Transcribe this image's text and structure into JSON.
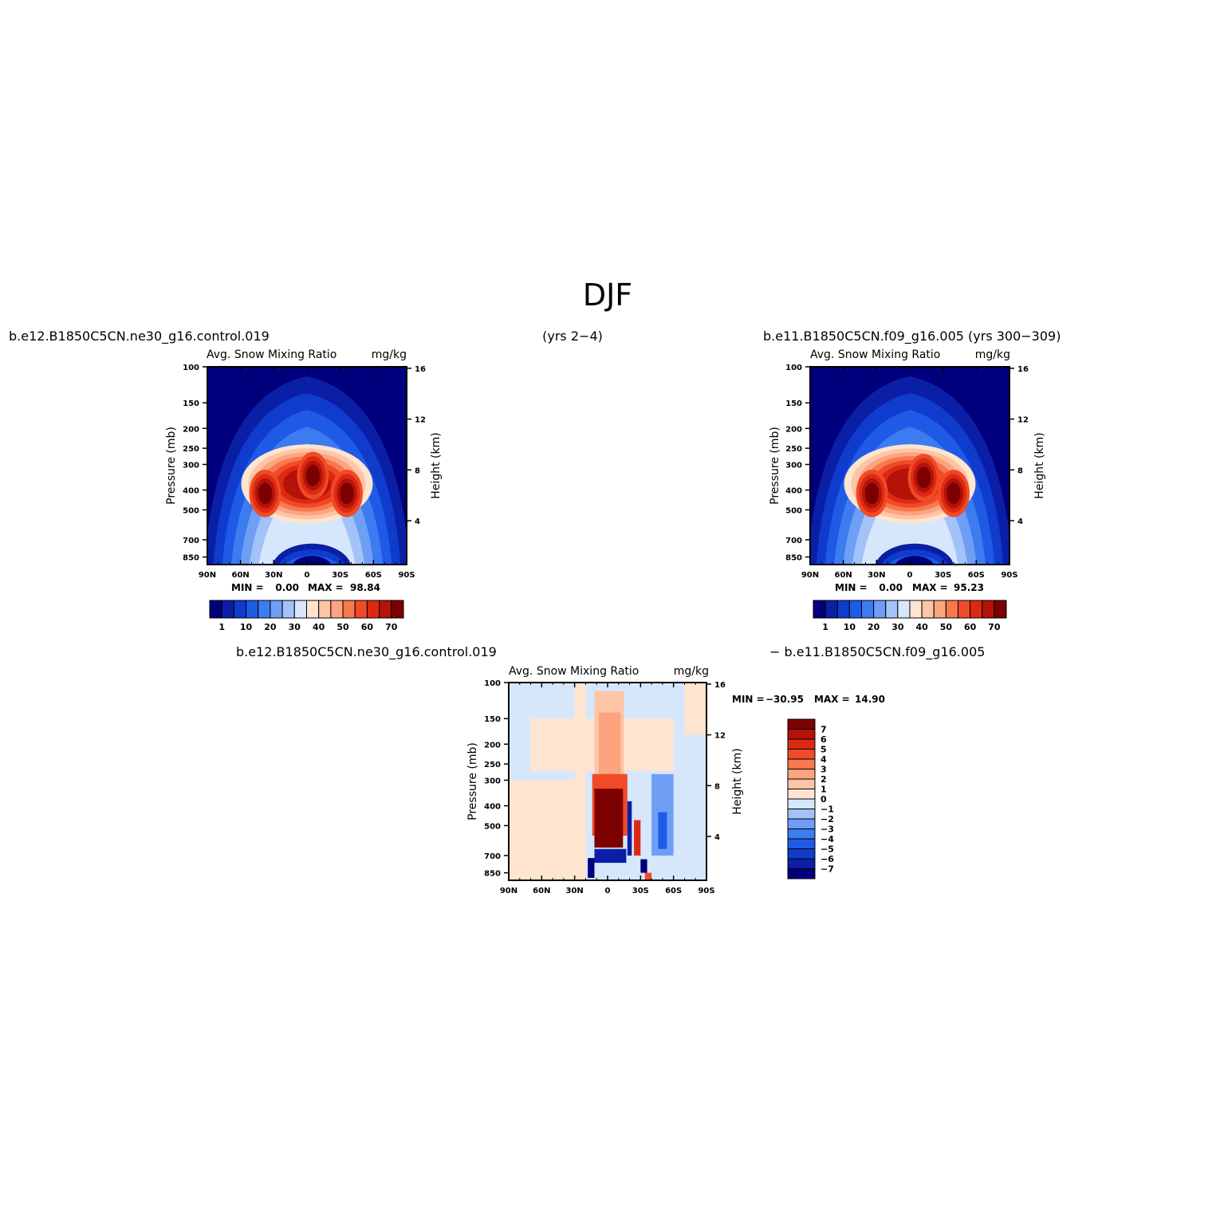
{
  "title": "DJF",
  "colors": {
    "abs_scale": [
      "#00007d",
      "#0b1fa6",
      "#0f3ccd",
      "#1f5ae6",
      "#3c7cf0",
      "#6e9ff5",
      "#a3c2f8",
      "#d6e7fc",
      "#ffe5d0",
      "#fdc5a5",
      "#fca47e",
      "#f8784f",
      "#f04a28",
      "#dc2a12",
      "#b5120a",
      "#7d0000"
    ],
    "diff_scale": [
      "#7d0000",
      "#b5120a",
      "#dc2a12",
      "#f04a28",
      "#f8784f",
      "#fca47e",
      "#fdc5a5",
      "#ffe5d0",
      "#d6e7fc",
      "#a3c2f8",
      "#6e9ff5",
      "#3c7cf0",
      "#1f5ae6",
      "#0f3ccd",
      "#0b1fa6",
      "#00007d"
    ]
  },
  "header": {
    "case1_name": "b.e12.B1850C5CN.ne30_g16.control.019",
    "case1_years": "(yrs 2−4)",
    "case2_name": "b.e11.B1850C5CN.f09_g16.005 (yrs 300−309)",
    "diff_left": "b.e12.B1850C5CN.ne30_g16.control.019",
    "diff_right": "−  b.e11.B1850C5CN.f09_g16.005"
  },
  "panel_text": {
    "left_title": "Avg. Snow Mixing Ratio",
    "right_title": "mg/kg",
    "ylabel": "Pressure (mb)",
    "y2label": "Height (km)",
    "min_label": "MIN =",
    "max_label": "MAX ="
  },
  "chart_data": [
    {
      "type": "heatmap",
      "name": "b.e12.B1850C5CN.ne30_g16.control.019",
      "x_ticks": [
        "90N",
        "60N",
        "30N",
        "0",
        "30S",
        "60S",
        "90S"
      ],
      "x_tick_values": [
        90,
        60,
        30,
        0,
        -30,
        -60,
        -90
      ],
      "y_ticks": [
        "100",
        "150",
        "200",
        "250",
        "300",
        "400",
        "500",
        "700",
        "850"
      ],
      "y_tick_values": [
        100,
        150,
        200,
        250,
        300,
        400,
        500,
        700,
        850
      ],
      "y2_ticks": [
        "16",
        "12",
        "8",
        "4"
      ],
      "y2_tick_values": [
        16,
        12,
        8,
        4
      ],
      "ylim": [
        100,
        925
      ],
      "min": "0.00",
      "max": "98.84",
      "colorbar_levels": [
        "1",
        "10",
        "20",
        "30",
        "40",
        "50",
        "60",
        "70"
      ],
      "features": [
        {
          "lat": 39,
          "p": 580,
          "value": 78
        },
        {
          "lat": 2,
          "p": 420,
          "value": 88
        },
        {
          "lat": -37,
          "p": 580,
          "value": 95
        }
      ]
    },
    {
      "type": "heatmap",
      "name": "b.e11.B1850C5CN.f09_g16.005",
      "x_ticks": [
        "90N",
        "60N",
        "30N",
        "0",
        "30S",
        "60S",
        "90S"
      ],
      "x_tick_values": [
        90,
        60,
        30,
        0,
        -30,
        -60,
        -90
      ],
      "y_ticks": [
        "100",
        "150",
        "200",
        "250",
        "300",
        "400",
        "500",
        "700",
        "850"
      ],
      "y_tick_values": [
        100,
        150,
        200,
        250,
        300,
        400,
        500,
        700,
        850
      ],
      "y2_ticks": [
        "16",
        "12",
        "8",
        "4"
      ],
      "y2_tick_values": [
        16,
        12,
        8,
        4
      ],
      "ylim": [
        100,
        925
      ],
      "min": "0.00",
      "max": "95.23",
      "colorbar_levels": [
        "1",
        "10",
        "20",
        "30",
        "40",
        "50",
        "60",
        "70"
      ],
      "features": [
        {
          "lat": 39,
          "p": 580,
          "value": 72
        },
        {
          "lat": -12,
          "p": 420,
          "value": 80
        },
        {
          "lat": -40,
          "p": 580,
          "value": 92
        }
      ]
    },
    {
      "type": "heatmap",
      "name": "difference",
      "x_ticks": [
        "90N",
        "60N",
        "30N",
        "0",
        "30S",
        "60S",
        "90S"
      ],
      "x_tick_values": [
        90,
        60,
        30,
        0,
        -30,
        -60,
        -90
      ],
      "y_ticks": [
        "100",
        "150",
        "200",
        "250",
        "300",
        "400",
        "500",
        "700",
        "850"
      ],
      "y_tick_values": [
        100,
        150,
        200,
        250,
        300,
        400,
        500,
        700,
        850
      ],
      "y2_ticks": [
        "16",
        "12",
        "8",
        "4"
      ],
      "y2_tick_values": [
        16,
        12,
        8,
        4
      ],
      "ylim": [
        100,
        925
      ],
      "min": "−30.95",
      "max": "14.90",
      "colorbar_levels": [
        "7",
        "6",
        "5",
        "4",
        "3",
        "2",
        "1",
        "0",
        "−1",
        "−2",
        "−3",
        "−4",
        "−5",
        "−6",
        "−7"
      ],
      "features": [
        {
          "lat": 0,
          "p": 450,
          "value": 14.9
        },
        {
          "lat": 2,
          "p": 700,
          "value": -30.95
        }
      ]
    }
  ]
}
